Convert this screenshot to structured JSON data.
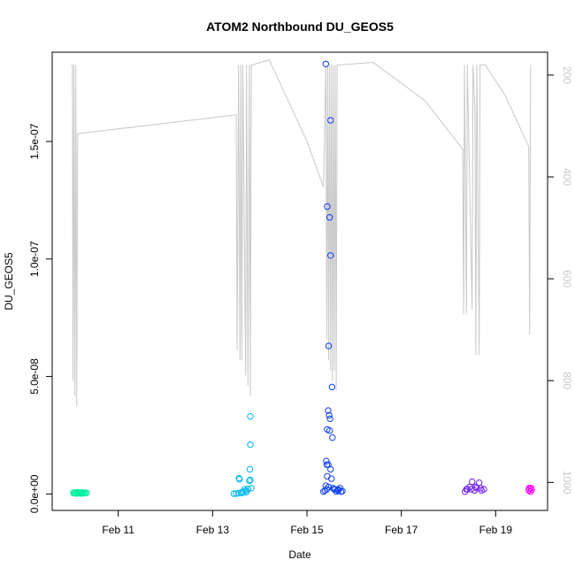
{
  "chart_data": {
    "type": "scatter",
    "title": "ATOM2 Northbound DU_GEOS5",
    "xlabel": "Date",
    "ylabel": "DU_GEOS5",
    "x_ticks": [
      "Feb 11",
      "Feb 13",
      "Feb 15",
      "Feb 17",
      "Feb 19"
    ],
    "y_ticks": [
      "0.0e+00",
      "5.0e-08",
      "1.0e-07",
      "1.5e-07"
    ],
    "y2_ticks": [
      "200",
      "400",
      "600",
      "800",
      "1000"
    ],
    "x_range_days": [
      9.6,
      20.1
    ],
    "ylim": [
      -7e-09,
      1.88e-07
    ],
    "y2lim": [
      1055,
      155
    ],
    "y2_reversed": true,
    "colors": {
      "flight1": "#00f0a0",
      "flight2": "#00b8f0",
      "flight3": "#1040f0",
      "flight4": "#7020f0",
      "flight5": "#ff00ff",
      "pressure_line": "#c8c8c8",
      "axis": "#000000"
    },
    "series": [
      {
        "color_key": "flight1",
        "points": [
          [
            10.05,
            4e-10
          ],
          [
            10.08,
            3e-10
          ],
          [
            10.1,
            5e-10
          ],
          [
            10.12,
            2e-10
          ],
          [
            10.15,
            4e-10
          ],
          [
            10.18,
            3e-10
          ],
          [
            10.2,
            6e-10
          ],
          [
            10.22,
            2e-10
          ],
          [
            10.25,
            4e-10
          ],
          [
            10.28,
            3e-10
          ],
          [
            10.3,
            5e-10
          ],
          [
            10.33,
            4e-10
          ],
          [
            10.06,
            6e-10
          ],
          [
            10.14,
            7e-10
          ],
          [
            10.24,
            6e-10
          ]
        ]
      },
      {
        "color_key": "flight2",
        "points": [
          [
            13.45,
            1e-10
          ],
          [
            13.5,
            2e-10
          ],
          [
            13.55,
            3e-10
          ],
          [
            13.6,
            6e-10
          ],
          [
            13.63,
            4e-10
          ],
          [
            13.65,
            1e-09
          ],
          [
            13.68,
            2e-09
          ],
          [
            13.72,
            8e-10
          ],
          [
            13.75,
            2.2e-09
          ],
          [
            13.78,
            5.6e-09
          ],
          [
            13.8,
            2.1e-08
          ],
          [
            13.8,
            3.3e-08
          ],
          [
            13.79,
            1.05e-08
          ],
          [
            13.8,
            6e-09
          ],
          [
            13.82,
            2.5e-09
          ],
          [
            13.56,
            6.7e-09
          ],
          [
            13.57,
            6.3e-09
          ],
          [
            13.7,
            1.3e-09
          ]
        ]
      },
      {
        "color_key": "flight3",
        "points": [
          [
            15.4,
            1.83e-07
          ],
          [
            15.5,
            1.59e-07
          ],
          [
            15.43,
            1.223e-07
          ],
          [
            15.48,
            1.177e-07
          ],
          [
            15.5,
            1.015e-07
          ],
          [
            15.46,
            6.3e-08
          ],
          [
            15.53,
            4.55e-08
          ],
          [
            15.45,
            3.55e-08
          ],
          [
            15.47,
            3.35e-08
          ],
          [
            15.49,
            3.2e-08
          ],
          [
            15.43,
            2.75e-08
          ],
          [
            15.48,
            2.7e-08
          ],
          [
            15.54,
            2.4e-08
          ],
          [
            15.41,
            1.4e-08
          ],
          [
            15.42,
            1.25e-08
          ],
          [
            15.45,
            1.25e-08
          ],
          [
            15.5,
            1.05e-08
          ],
          [
            15.43,
            7.5e-09
          ],
          [
            15.52,
            6.5e-09
          ],
          [
            15.4,
            3.5e-09
          ],
          [
            15.46,
            3e-09
          ],
          [
            15.55,
            2.5e-09
          ],
          [
            15.6,
            2e-09
          ],
          [
            15.65,
            1.5e-09
          ],
          [
            15.7,
            2.5e-09
          ],
          [
            15.72,
            1e-09
          ],
          [
            15.38,
            1.5e-09
          ],
          [
            15.42,
            2e-09
          ],
          [
            15.58,
            2e-09
          ],
          [
            15.62,
            1e-09
          ],
          [
            15.67,
            1.8e-09
          ],
          [
            15.35,
            1e-09
          ],
          [
            15.75,
            1.2e-09
          ]
        ]
      },
      {
        "color_key": "flight4",
        "points": [
          [
            18.35,
            1e-09
          ],
          [
            18.4,
            2e-09
          ],
          [
            18.45,
            3e-09
          ],
          [
            18.5,
            5.2e-09
          ],
          [
            18.55,
            1.5e-09
          ],
          [
            18.6,
            2.5e-09
          ],
          [
            18.65,
            4.8e-09
          ],
          [
            18.7,
            1.5e-09
          ],
          [
            18.75,
            2e-09
          ],
          [
            18.48,
            2e-09
          ],
          [
            18.58,
            3e-09
          ],
          [
            18.68,
            2.5e-09
          ],
          [
            18.38,
            2e-09
          ]
        ]
      },
      {
        "color_key": "flight5",
        "points": [
          [
            19.7,
            1.5e-09
          ],
          [
            19.72,
            2.2e-09
          ],
          [
            19.74,
            1e-09
          ],
          [
            19.76,
            1.8e-09
          ],
          [
            19.71,
            2.5e-09
          ],
          [
            19.75,
            2.5e-09
          ]
        ]
      }
    ],
    "pressure_profile": [
      [
        10.0,
        180
      ],
      [
        10.03,
        180
      ],
      [
        10.04,
        800
      ],
      [
        10.06,
        180
      ],
      [
        10.08,
        830
      ],
      [
        10.1,
        180
      ],
      [
        10.12,
        850
      ],
      [
        10.14,
        315
      ],
      [
        13.5,
        278
      ],
      [
        13.52,
        740
      ],
      [
        13.55,
        180
      ],
      [
        13.58,
        760
      ],
      [
        13.6,
        180
      ],
      [
        13.62,
        760
      ],
      [
        13.64,
        180
      ],
      [
        13.7,
        790
      ],
      [
        13.72,
        180
      ],
      [
        13.75,
        810
      ],
      [
        13.78,
        180
      ],
      [
        13.8,
        830
      ],
      [
        13.82,
        180
      ],
      [
        13.84,
        180
      ],
      [
        14.2,
        170
      ],
      [
        14.6,
        250
      ],
      [
        15.0,
        330
      ],
      [
        15.35,
        420
      ],
      [
        15.4,
        180
      ],
      [
        15.42,
        720
      ],
      [
        15.44,
        180
      ],
      [
        15.46,
        760
      ],
      [
        15.48,
        180
      ],
      [
        15.5,
        780
      ],
      [
        15.52,
        180
      ],
      [
        15.54,
        800
      ],
      [
        15.56,
        180
      ],
      [
        15.58,
        780
      ],
      [
        15.6,
        180
      ],
      [
        15.62,
        820
      ],
      [
        15.64,
        180
      ],
      [
        15.68,
        180
      ],
      [
        16.4,
        175
      ],
      [
        17.5,
        250
      ],
      [
        18.3,
        345
      ],
      [
        18.32,
        670
      ],
      [
        18.34,
        180
      ],
      [
        18.38,
        670
      ],
      [
        18.4,
        180
      ],
      [
        18.5,
        660
      ],
      [
        18.52,
        180
      ],
      [
        18.56,
        270
      ],
      [
        18.58,
        750
      ],
      [
        18.6,
        180
      ],
      [
        18.65,
        750
      ],
      [
        18.67,
        180
      ],
      [
        18.78,
        180
      ],
      [
        19.2,
        240
      ],
      [
        19.7,
        340
      ],
      [
        19.72,
        710
      ],
      [
        19.74,
        180
      ]
    ]
  }
}
